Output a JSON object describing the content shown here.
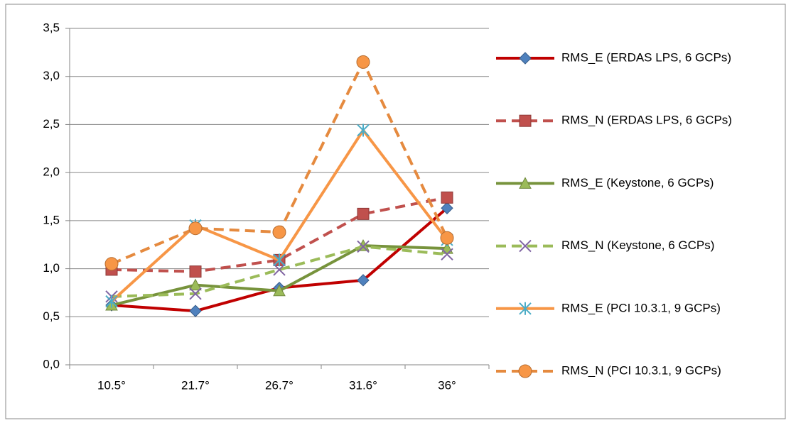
{
  "chart_data": {
    "type": "line",
    "categories": [
      "10.5°",
      "21.7°",
      "26.7°",
      "31.6°",
      "36°"
    ],
    "ylim": [
      0,
      3.5
    ],
    "yticks": [
      {
        "value": 0,
        "label": "0,0"
      },
      {
        "value": 0.5,
        "label": "0,5"
      },
      {
        "value": 1,
        "label": "1,0"
      },
      {
        "value": 1.5,
        "label": "1,5"
      },
      {
        "value": 2,
        "label": "2,0"
      },
      {
        "value": 2.5,
        "label": "2,5"
      },
      {
        "value": 3,
        "label": "3,0"
      },
      {
        "value": 3.5,
        "label": "3,5"
      }
    ],
    "grid": true,
    "legend": "right",
    "series": [
      {
        "name": "RMS_E (ERDAS LPS, 6 GCPs)",
        "color": "#c00000",
        "marker_color": "#4f81bd",
        "marker": "diamond",
        "dashed": false,
        "values": [
          0.62,
          0.56,
          0.8,
          0.88,
          1.63
        ]
      },
      {
        "name": "RMS_N (ERDAS LPS, 6 GCPs)",
        "color": "#c0504d",
        "marker_color": "#c0504d",
        "marker": "square",
        "dashed": true,
        "values": [
          0.99,
          0.97,
          1.09,
          1.57,
          1.74
        ]
      },
      {
        "name": "RMS_E (Keystone, 6 GCPs)",
        "color": "#77933c",
        "marker_color": "#9bbb59",
        "marker": "triangle",
        "dashed": false,
        "values": [
          0.62,
          0.83,
          0.77,
          1.24,
          1.21
        ]
      },
      {
        "name": "RMS_N (Keystone, 6 GCPs)",
        "color": "#9bbb59",
        "marker_color": "#8064a2",
        "marker": "x",
        "dashed": true,
        "values": [
          0.71,
          0.74,
          0.99,
          1.23,
          1.15
        ]
      },
      {
        "name": "RMS_E (PCI 10.3.1, 9 GCPs)",
        "color": "#f79646",
        "marker_color": "#4bacc6",
        "marker": "asterisk",
        "dashed": false,
        "values": [
          0.66,
          1.45,
          1.09,
          2.44,
          1.3
        ]
      },
      {
        "name": "RMS_N (PCI 10.3.1, 9 GCPs)",
        "color": "#e58a3f",
        "marker_color": "#f79646",
        "marker": "circle",
        "dashed": true,
        "values": [
          1.05,
          1.42,
          1.38,
          3.15,
          1.32
        ]
      }
    ]
  }
}
